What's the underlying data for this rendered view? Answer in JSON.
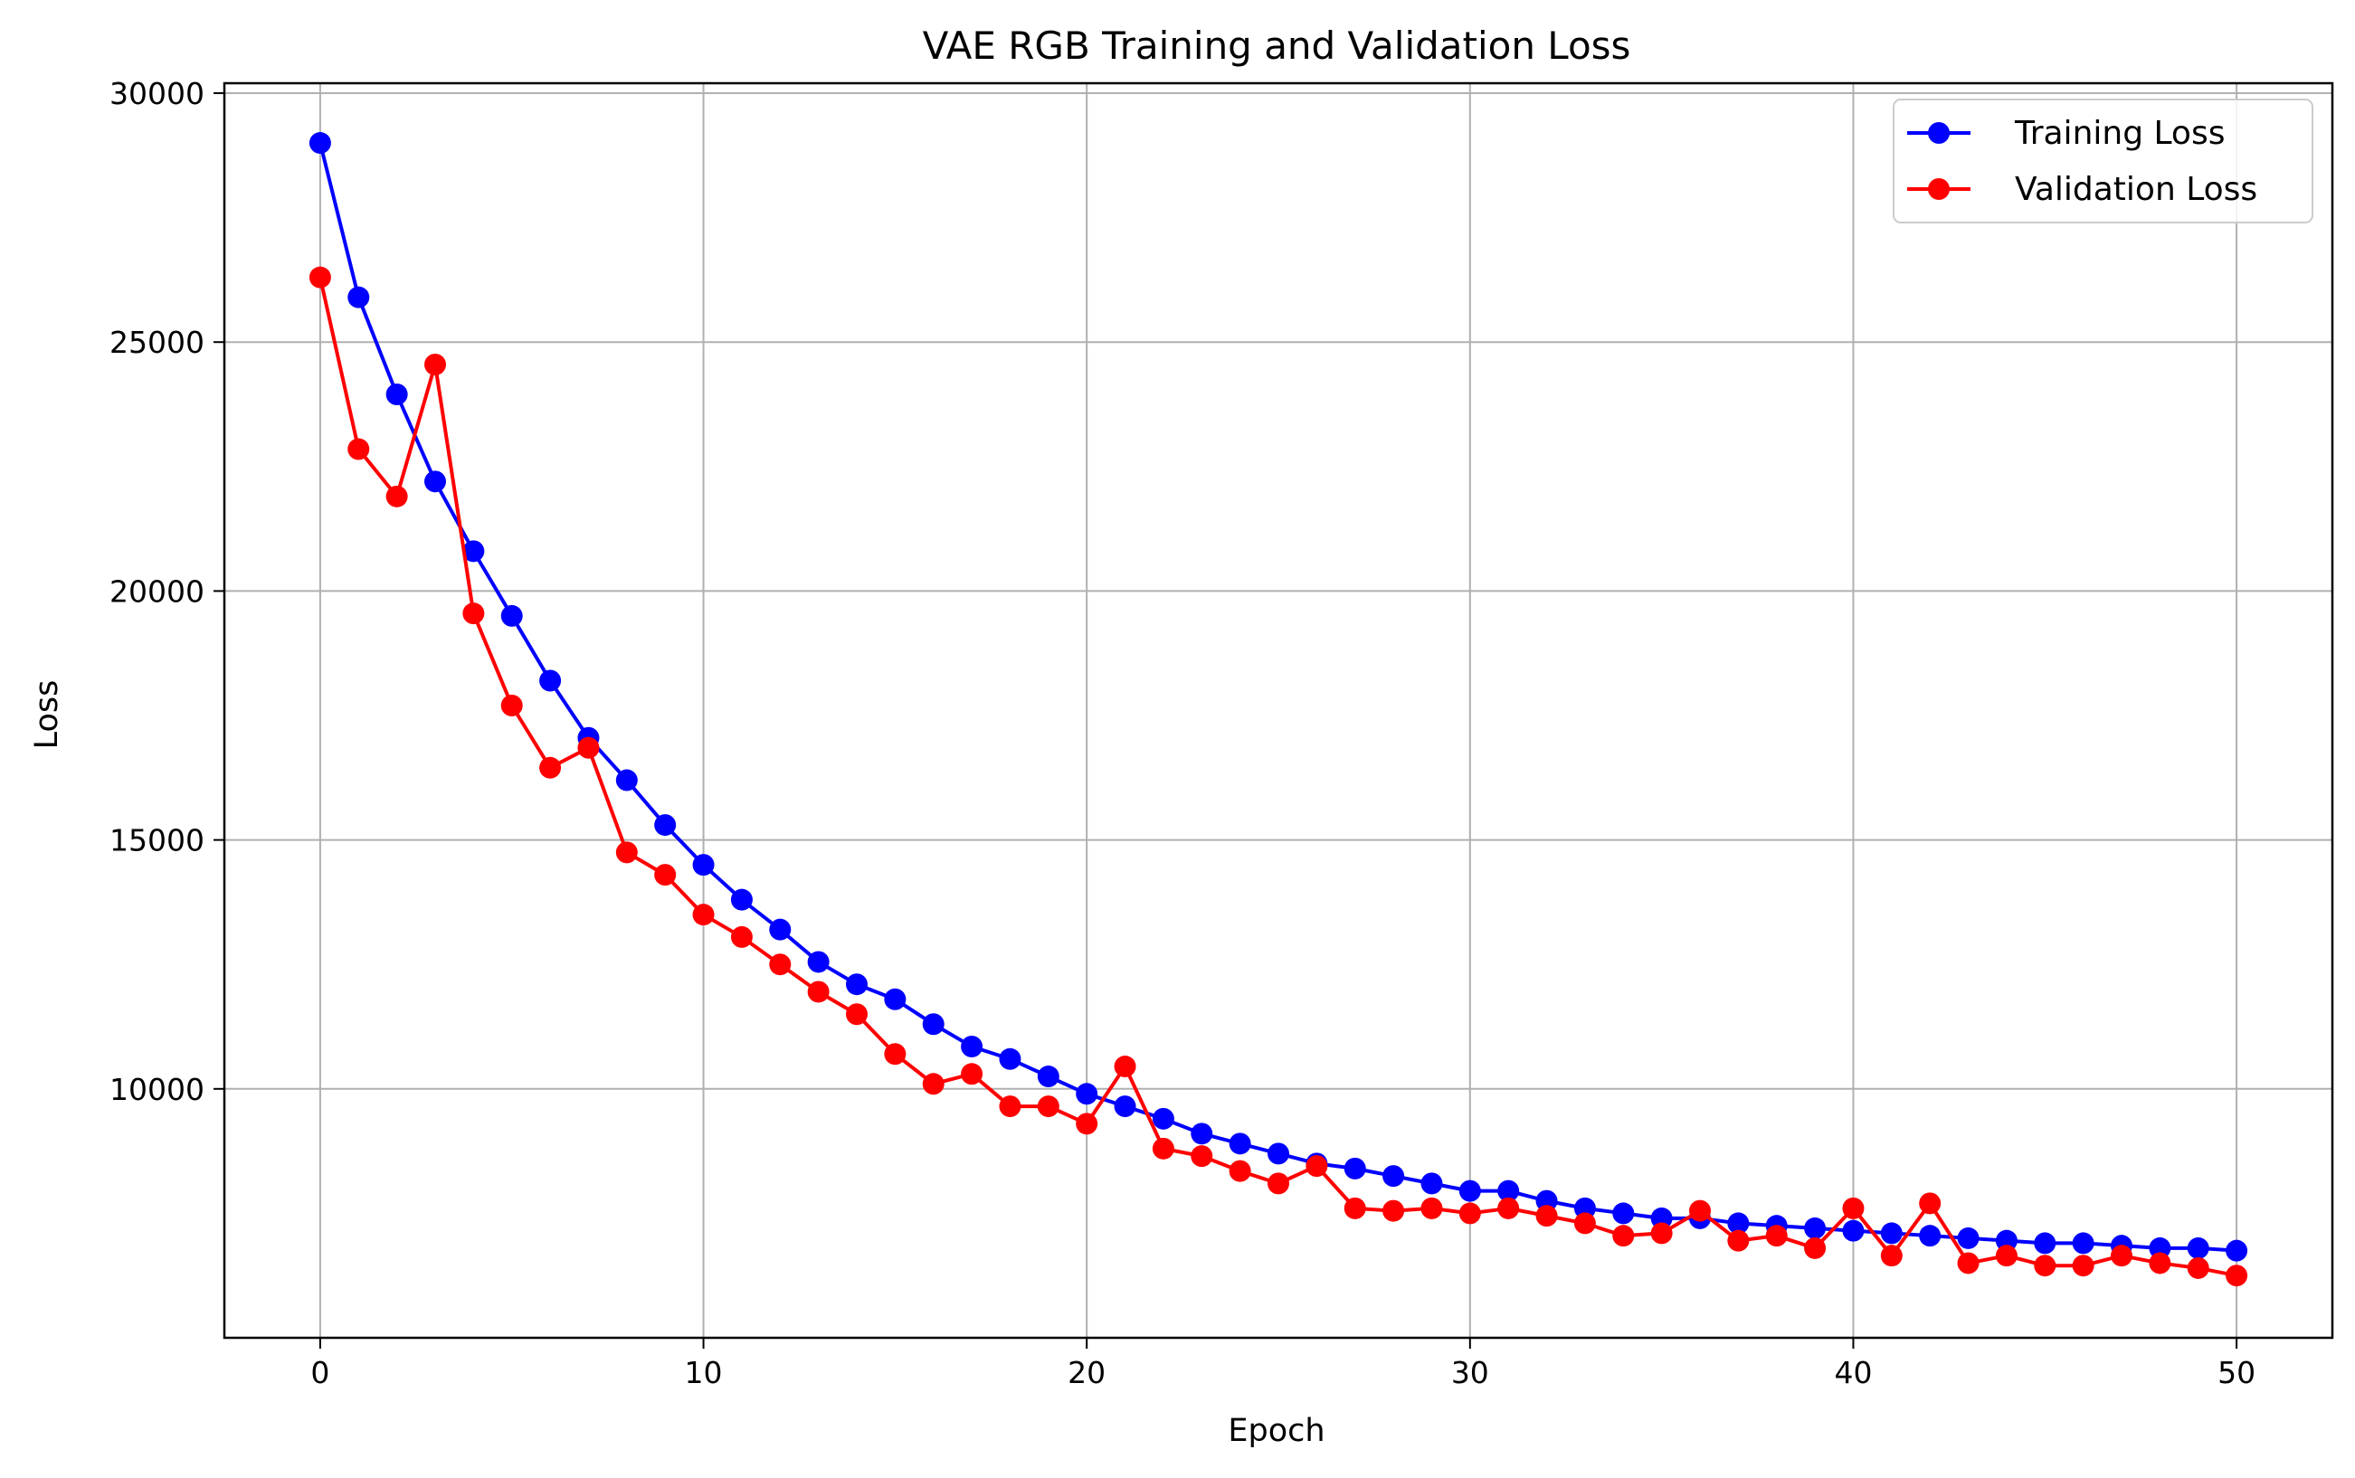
{
  "chart_data": {
    "type": "line",
    "title": "VAE RGB Training and Validation Loss",
    "xlabel": "Epoch",
    "ylabel": "Loss",
    "xlim": [
      -2.5,
      52.5
    ],
    "ylim": [
      5000,
      30200
    ],
    "xticks": [
      0,
      10,
      20,
      30,
      40,
      50
    ],
    "xtick_labels": [
      "0",
      "10",
      "20",
      "30",
      "40",
      "50"
    ],
    "yticks": [
      10000,
      15000,
      20000,
      25000,
      30000
    ],
    "ytick_labels": [
      "10000",
      "15000",
      "20000",
      "25000",
      "30000"
    ],
    "grid": true,
    "legend_position": "top-right",
    "x": [
      0,
      1,
      2,
      3,
      4,
      5,
      6,
      7,
      8,
      9,
      10,
      11,
      12,
      13,
      14,
      15,
      16,
      17,
      18,
      19,
      20,
      21,
      22,
      23,
      24,
      25,
      26,
      27,
      28,
      29,
      30,
      31,
      32,
      33,
      34,
      35,
      36,
      37,
      38,
      39,
      40,
      41,
      42,
      43,
      44,
      45,
      46,
      47,
      48,
      49,
      50
    ],
    "series": [
      {
        "name": "Training Loss",
        "color": "#0000ff",
        "marker": "circle",
        "values": [
          29000,
          25900,
          23950,
          22200,
          20800,
          19500,
          18200,
          17050,
          16200,
          15300,
          14500,
          13800,
          13200,
          12550,
          12100,
          11800,
          11300,
          10850,
          10600,
          10250,
          9900,
          9650,
          9400,
          9100,
          8900,
          8700,
          8500,
          8400,
          8250,
          8100,
          7950,
          7950,
          7750,
          7600,
          7500,
          7400,
          7400,
          7300,
          7250,
          7200,
          7150,
          7100,
          7050,
          7000,
          6950,
          6900,
          6900,
          6850,
          6800,
          6800,
          6750
        ]
      },
      {
        "name": "Validation Loss",
        "color": "#ff0000",
        "marker": "circle",
        "values": [
          26300,
          22850,
          21900,
          24550,
          19550,
          17700,
          16450,
          16850,
          14750,
          14300,
          13500,
          13050,
          12500,
          11950,
          11500,
          10700,
          10100,
          10300,
          9650,
          9650,
          9300,
          10450,
          8800,
          8650,
          8350,
          8100,
          8450,
          7600,
          7550,
          7600,
          7500,
          7600,
          7450,
          7300,
          7050,
          7100,
          7550,
          6950,
          7050,
          6800,
          7600,
          6650,
          7700,
          6500,
          6650,
          6450,
          6450,
          6650,
          6500,
          6400,
          6250
        ]
      }
    ]
  }
}
